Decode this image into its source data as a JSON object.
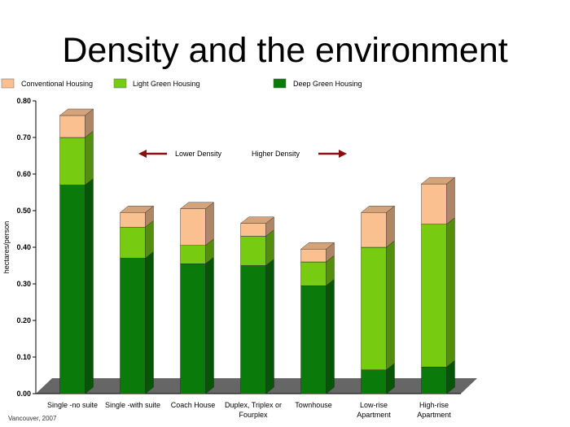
{
  "page_title": "Density and the environment",
  "source_note": "Vancouver, 2007",
  "colors": {
    "conventional": "#FAC090",
    "light_green": "#77CC11",
    "deep_green": "#0A7A0A",
    "arrow": "#8B0F0F",
    "floor": "#666666"
  },
  "chart_data": {
    "type": "bar",
    "stacked": true,
    "three_d": true,
    "title": "Density and the environment",
    "xlabel": "",
    "ylabel": "hectares/person",
    "ylim": [
      0,
      0.8
    ],
    "yticks": [
      "0.00",
      "0.10",
      "0.20",
      "0.30",
      "0.40",
      "0.50",
      "0.60",
      "0.70",
      "0.80"
    ],
    "categories": [
      [
        "Single -no suite"
      ],
      [
        "Single -with suite"
      ],
      [
        "Coach House"
      ],
      [
        "Duplex, Triplex or",
        "Fourplex"
      ],
      [
        "Townhouse"
      ],
      [
        "Low-rise",
        "Apartment"
      ],
      [
        "High-rise",
        "Apartment"
      ]
    ],
    "series": [
      {
        "name": "Deep Green Housing",
        "values": [
          0.57,
          0.37,
          0.355,
          0.35,
          0.295,
          0.065,
          0.073
        ]
      },
      {
        "name": "Light Green Housing",
        "values": [
          0.13,
          0.085,
          0.05,
          0.08,
          0.065,
          0.335,
          0.39
        ]
      },
      {
        "name": "Conventional Housing",
        "values": [
          0.06,
          0.04,
          0.1,
          0.035,
          0.035,
          0.095,
          0.11
        ]
      }
    ],
    "legend": {
      "placement": "top"
    },
    "annotations": [
      "Lower Density",
      "Higher Density"
    ],
    "grid": false
  }
}
